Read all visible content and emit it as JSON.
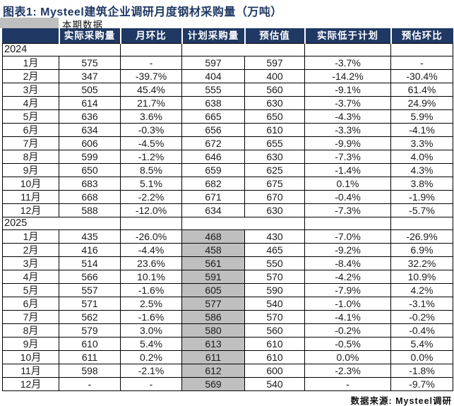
{
  "title": "图表1: Mysteel建筑企业调研月度钢材采购量（万吨）",
  "period_tab": {
    "label": "本期数据"
  },
  "footer": {
    "source": "数据来源: Mysteel调研"
  },
  "colors": {
    "header_bg": "#1F3864",
    "title_color": "#1F3864",
    "highlight_bg": "#BFBFBF",
    "border": "#000000"
  },
  "chart_data": {
    "type": "table",
    "title": "图表1: Mysteel建筑企业调研月度钢材采购量（万吨）",
    "unit": "万吨",
    "columns": [
      "",
      "实际采购量",
      "月环比",
      "计划采购量",
      "预估值",
      "实际低于计划",
      "预估环比"
    ],
    "highlight_note": "2025年计划采购量列为灰色底纹",
    "sections": [
      {
        "year": "2024",
        "highlight_planned": false,
        "rows": [
          [
            "1月",
            "575",
            "-",
            "597",
            "597",
            "-3.7%",
            "-"
          ],
          [
            "2月",
            "347",
            "-39.7%",
            "404",
            "400",
            "-14.2%",
            "-30.4%"
          ],
          [
            "3月",
            "505",
            "45.4%",
            "555",
            "560",
            "-9.1%",
            "61.4%"
          ],
          [
            "4月",
            "614",
            "21.7%",
            "638",
            "630",
            "-3.7%",
            "24.9%"
          ],
          [
            "5月",
            "636",
            "3.6%",
            "665",
            "650",
            "-4.3%",
            "5.9%"
          ],
          [
            "6月",
            "634",
            "-0.3%",
            "656",
            "610",
            "-3.3%",
            "-4.1%"
          ],
          [
            "7月",
            "606",
            "-4.5%",
            "672",
            "655",
            "-9.9%",
            "3.3%"
          ],
          [
            "8月",
            "599",
            "-1.2%",
            "646",
            "630",
            "-7.3%",
            "4.0%"
          ],
          [
            "9月",
            "650",
            "8.5%",
            "659",
            "625",
            "-1.4%",
            "4.3%"
          ],
          [
            "10月",
            "683",
            "5.1%",
            "682",
            "675",
            "0.1%",
            "3.8%"
          ],
          [
            "11月",
            "668",
            "-2.2%",
            "671",
            "670",
            "-0.4%",
            "-1.9%"
          ],
          [
            "12月",
            "588",
            "-12.0%",
            "634",
            "630",
            "-7.3%",
            "-5.7%"
          ]
        ]
      },
      {
        "year": "2025",
        "highlight_planned": true,
        "rows": [
          [
            "1月",
            "435",
            "-26.0%",
            "468",
            "430",
            "-7.0%",
            "-26.9%"
          ],
          [
            "2月",
            "416",
            "-4.4%",
            "458",
            "465",
            "-9.2%",
            "6.9%"
          ],
          [
            "3月",
            "514",
            "23.6%",
            "561",
            "550",
            "-8.4%",
            "32.2%"
          ],
          [
            "4月",
            "566",
            "10.1%",
            "591",
            "570",
            "-4.2%",
            "10.9%"
          ],
          [
            "5月",
            "557",
            "-1.6%",
            "605",
            "590",
            "-7.9%",
            "4.2%"
          ],
          [
            "6月",
            "571",
            "2.5%",
            "577",
            "540",
            "-1.0%",
            "-3.1%"
          ],
          [
            "7月",
            "562",
            "-1.6%",
            "586",
            "570",
            "-4.1%",
            "-0.2%"
          ],
          [
            "8月",
            "579",
            "3.0%",
            "580",
            "560",
            "-0.2%",
            "-0.4%"
          ],
          [
            "9月",
            "610",
            "5.4%",
            "613",
            "610",
            "-0.5%",
            "5.4%"
          ],
          [
            "10月",
            "611",
            "0.2%",
            "611",
            "610",
            "0.0%",
            "0.0%"
          ],
          [
            "11月",
            "598",
            "-2.1%",
            "612",
            "600",
            "-2.3%",
            "-1.8%"
          ],
          [
            "12月",
            "-",
            "-",
            "569",
            "540",
            "-",
            "-9.7%"
          ]
        ]
      }
    ]
  }
}
